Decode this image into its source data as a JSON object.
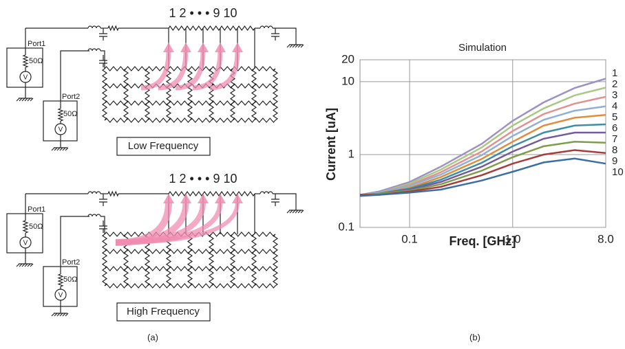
{
  "diagram": {
    "panels": [
      {
        "nodes": "1 2 • • • 9 10",
        "ports": [
          {
            "name": "Port1",
            "resistor": "50Ω",
            "source": "V"
          },
          {
            "name": "Port2",
            "resistor": "50Ω",
            "source": "V"
          }
        ],
        "caption": "Low Frequency"
      },
      {
        "nodes": "1 2 • • • 9 10",
        "ports": [
          {
            "name": "Port1",
            "resistor": "50Ω",
            "source": "V"
          },
          {
            "name": "Port2",
            "resistor": "50Ω",
            "source": "V"
          }
        ],
        "caption": "High Frequency"
      }
    ],
    "label": "(a)"
  },
  "chart_data": {
    "type": "line",
    "title": "Simulation",
    "x_label": "Freq. [GHz]",
    "y_label": "Current [uA]",
    "label": "(b)",
    "x": [
      0.033,
      0.05,
      0.1,
      0.2,
      0.5,
      1,
      2,
      4,
      8
    ],
    "series": [
      {
        "name": "1",
        "color": "#9d90c4",
        "values": [
          0.28,
          0.31,
          0.42,
          0.68,
          1.4,
          2.9,
          5.2,
          8.2,
          11
        ]
      },
      {
        "name": "2",
        "color": "#a9c883",
        "values": [
          0.28,
          0.3,
          0.4,
          0.62,
          1.25,
          2.5,
          4.3,
          6.5,
          8.3
        ]
      },
      {
        "name": "3",
        "color": "#e38f8f",
        "values": [
          0.28,
          0.3,
          0.38,
          0.57,
          1.1,
          2.1,
          3.6,
          5.0,
          6.2
        ]
      },
      {
        "name": "4",
        "color": "#8fb0d3",
        "values": [
          0.28,
          0.3,
          0.37,
          0.53,
          0.98,
          1.8,
          3.0,
          4.0,
          4.6
        ]
      },
      {
        "name": "5",
        "color": "#e38b3c",
        "values": [
          0.28,
          0.29,
          0.35,
          0.49,
          0.87,
          1.5,
          2.5,
          3.2,
          3.5
        ]
      },
      {
        "name": "6",
        "color": "#3b8ea3",
        "values": [
          0.28,
          0.29,
          0.34,
          0.45,
          0.77,
          1.3,
          2.0,
          2.5,
          2.6
        ]
      },
      {
        "name": "7",
        "color": "#75599c",
        "values": [
          0.28,
          0.29,
          0.33,
          0.42,
          0.68,
          1.1,
          1.65,
          2.0,
          2.0
        ]
      },
      {
        "name": "8",
        "color": "#7e9c4a",
        "values": [
          0.28,
          0.29,
          0.32,
          0.39,
          0.6,
          0.92,
          1.3,
          1.5,
          1.45
        ]
      },
      {
        "name": "9",
        "color": "#a63c3c",
        "values": [
          0.28,
          0.28,
          0.31,
          0.36,
          0.52,
          0.75,
          1.0,
          1.15,
          1.05
        ]
      },
      {
        "name": "10",
        "color": "#3c6ea3",
        "values": [
          0.27,
          0.28,
          0.3,
          0.33,
          0.44,
          0.58,
          0.78,
          0.88,
          0.75
        ]
      }
    ],
    "log_x": true,
    "log_y": true,
    "xlim": [
      0.033,
      8
    ],
    "ylim": [
      0.1,
      20
    ],
    "xticks": [
      0.1,
      {
        "value": 1,
        "label": "1.0"
      },
      {
        "value": 8,
        "label": "8.0"
      }
    ],
    "yticks": [
      0.1,
      1,
      10,
      20
    ],
    "grid": true
  }
}
